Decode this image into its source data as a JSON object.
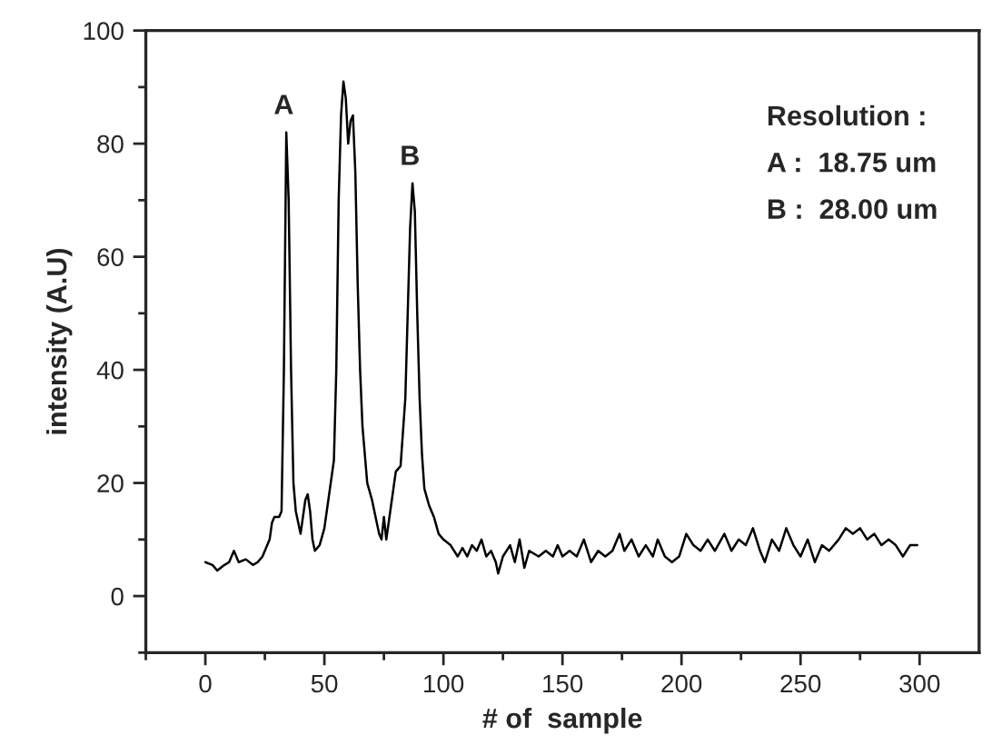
{
  "chart_data": {
    "type": "line",
    "xlabel": "# of  sample",
    "ylabel": "intensity (A.U)",
    "xlim": [
      -25,
      325
    ],
    "xticks": [
      0,
      50,
      100,
      150,
      200,
      250,
      300
    ],
    "ylim": [
      -10,
      100
    ],
    "yticks": [
      0,
      20,
      40,
      60,
      80,
      100
    ],
    "grid": false,
    "legend": false,
    "series": [
      {
        "color": "#000000",
        "x": [
          0,
          3,
          5,
          8,
          10,
          12,
          14,
          17,
          20,
          22,
          24,
          26,
          27,
          28,
          29,
          31,
          32,
          33,
          34,
          35,
          36,
          37,
          38,
          40,
          42,
          43,
          44,
          45,
          46,
          48,
          50,
          52,
          54,
          55,
          56,
          57,
          58,
          59,
          60,
          61,
          62,
          63,
          64,
          65,
          66,
          68,
          70,
          72,
          73,
          74,
          75,
          76,
          78,
          80,
          82,
          84,
          86,
          87,
          88,
          89,
          90,
          91,
          92,
          94,
          96,
          98,
          100,
          103,
          106,
          108,
          110,
          112,
          114,
          116,
          118,
          120,
          122,
          123,
          125,
          128,
          130,
          132,
          134,
          136,
          140,
          143,
          146,
          148,
          150,
          153,
          156,
          159,
          162,
          165,
          168,
          171,
          174,
          176,
          179,
          182,
          185,
          188,
          190,
          193,
          196,
          199,
          202,
          205,
          208,
          211,
          214,
          218,
          221,
          224,
          227,
          230,
          233,
          235,
          238,
          241,
          244,
          247,
          250,
          253,
          256,
          259,
          262,
          266,
          269,
          272,
          275,
          278,
          281,
          284,
          287,
          290,
          293,
          296,
          299
        ],
        "values": [
          6,
          5.5,
          4.5,
          5.5,
          6,
          8,
          6,
          6.5,
          5.5,
          6,
          7,
          9,
          10,
          13,
          14,
          14,
          15,
          40,
          82,
          70,
          40,
          20,
          15,
          11,
          17,
          18,
          15,
          10,
          8,
          9,
          12,
          18,
          24,
          40,
          70,
          85,
          91,
          88,
          80,
          84,
          85,
          75,
          55,
          40,
          30,
          20,
          17,
          13,
          11,
          10,
          14,
          10,
          16,
          22,
          23,
          35,
          65,
          73,
          68,
          50,
          35,
          25,
          19,
          16,
          14,
          11,
          10,
          9,
          7,
          8.5,
          7,
          9,
          8,
          10,
          7,
          8,
          6,
          4,
          7,
          9,
          6,
          10,
          5,
          8,
          7,
          8,
          7,
          9,
          7,
          8,
          7,
          10,
          6,
          8,
          7,
          8,
          11,
          8,
          10,
          7,
          9,
          7,
          10,
          7,
          6,
          7,
          11,
          9,
          8,
          10,
          8,
          11,
          8,
          10,
          9,
          12,
          8,
          6,
          10,
          8,
          12,
          9,
          7,
          10,
          6,
          9,
          8,
          10,
          12,
          11,
          12,
          10,
          11,
          9,
          10,
          9,
          7,
          9,
          9
        ]
      }
    ],
    "annotations": [
      {
        "text": "A",
        "x": 34,
        "y": 82
      },
      {
        "text": "B",
        "x": 87,
        "y": 73
      },
      "Resolution :",
      "A :  18.75 um",
      "B :  28.00 um"
    ]
  }
}
